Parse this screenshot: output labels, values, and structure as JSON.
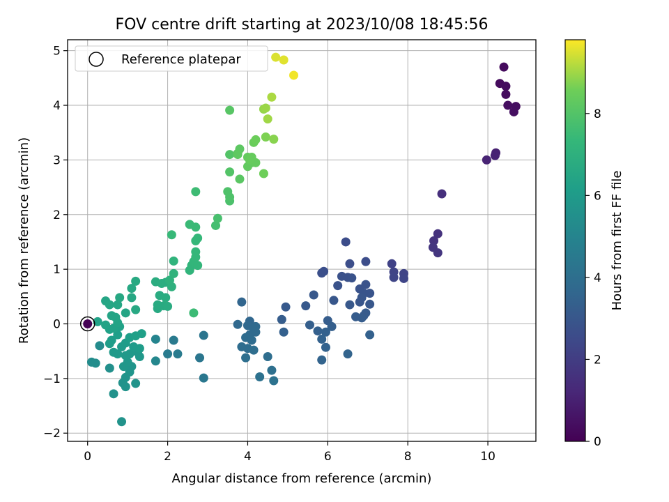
{
  "chart_data": {
    "type": "scatter",
    "title": "FOV centre drift starting at 2023/10/08 18:45:56",
    "xlabel": "Angular distance from reference (arcmin)",
    "ylabel": "Rotation from reference (arcmin)",
    "xlim": [
      -0.5,
      11.2
    ],
    "ylim": [
      -2.15,
      5.2
    ],
    "xticks": [
      0,
      2,
      4,
      6,
      8,
      10
    ],
    "yticks": [
      -2,
      -1,
      0,
      1,
      2,
      3,
      4,
      5
    ],
    "grid": true,
    "legend": {
      "placement": "upper-left",
      "entries": [
        "Reference platepar"
      ]
    },
    "reference_point": {
      "x": 0,
      "y": 0
    },
    "colorbar": {
      "label": "Hours from first FF file",
      "colormap": "viridis",
      "range": [
        0,
        9.8
      ],
      "ticks": [
        0,
        2,
        4,
        6,
        8
      ]
    },
    "points": [
      {
        "x": 10.4,
        "y": 4.7,
        "h": 0.3
      },
      {
        "x": 10.3,
        "y": 4.4,
        "h": 0.3
      },
      {
        "x": 10.45,
        "y": 4.35,
        "h": 0.35
      },
      {
        "x": 10.45,
        "y": 4.2,
        "h": 0.35
      },
      {
        "x": 10.5,
        "y": 4.0,
        "h": 0.4
      },
      {
        "x": 10.7,
        "y": 3.98,
        "h": 0.4
      },
      {
        "x": 10.65,
        "y": 3.88,
        "h": 0.45
      },
      {
        "x": 10.2,
        "y": 3.13,
        "h": 1.0
      },
      {
        "x": 10.18,
        "y": 3.08,
        "h": 1.05
      },
      {
        "x": 9.97,
        "y": 3.0,
        "h": 1.1
      },
      {
        "x": 8.85,
        "y": 2.38,
        "h": 1.5
      },
      {
        "x": 8.75,
        "y": 1.65,
        "h": 1.6
      },
      {
        "x": 8.65,
        "y": 1.52,
        "h": 1.65
      },
      {
        "x": 8.63,
        "y": 1.4,
        "h": 1.7
      },
      {
        "x": 8.75,
        "y": 1.3,
        "h": 1.75
      },
      {
        "x": 7.6,
        "y": 1.1,
        "h": 2.2
      },
      {
        "x": 7.65,
        "y": 0.95,
        "h": 2.25
      },
      {
        "x": 7.9,
        "y": 0.92,
        "h": 2.25
      },
      {
        "x": 7.65,
        "y": 0.85,
        "h": 2.3
      },
      {
        "x": 7.9,
        "y": 0.83,
        "h": 2.3
      },
      {
        "x": 6.45,
        "y": 1.5,
        "h": 2.6
      },
      {
        "x": 6.95,
        "y": 1.14,
        "h": 2.6
      },
      {
        "x": 6.55,
        "y": 1.1,
        "h": 2.65
      },
      {
        "x": 5.9,
        "y": 0.96,
        "h": 2.7
      },
      {
        "x": 5.85,
        "y": 0.93,
        "h": 2.7
      },
      {
        "x": 6.35,
        "y": 0.87,
        "h": 2.75
      },
      {
        "x": 6.5,
        "y": 0.85,
        "h": 2.75
      },
      {
        "x": 6.6,
        "y": 0.84,
        "h": 2.8
      },
      {
        "x": 6.25,
        "y": 0.7,
        "h": 2.8
      },
      {
        "x": 6.95,
        "y": 0.72,
        "h": 2.85
      },
      {
        "x": 6.8,
        "y": 0.64,
        "h": 2.85
      },
      {
        "x": 6.9,
        "y": 0.56,
        "h": 2.9
      },
      {
        "x": 7.05,
        "y": 0.56,
        "h": 2.9
      },
      {
        "x": 6.85,
        "y": 0.48,
        "h": 2.95
      },
      {
        "x": 6.8,
        "y": 0.4,
        "h": 2.95
      },
      {
        "x": 7.05,
        "y": 0.36,
        "h": 3.0
      },
      {
        "x": 6.15,
        "y": 0.43,
        "h": 3.0
      },
      {
        "x": 6.55,
        "y": 0.35,
        "h": 3.05
      },
      {
        "x": 5.65,
        "y": 0.53,
        "h": 3.05
      },
      {
        "x": 5.45,
        "y": 0.33,
        "h": 3.1
      },
      {
        "x": 4.95,
        "y": 0.31,
        "h": 3.1
      },
      {
        "x": 6.95,
        "y": 0.2,
        "h": 3.15
      },
      {
        "x": 6.9,
        "y": 0.15,
        "h": 3.15
      },
      {
        "x": 6.7,
        "y": 0.13,
        "h": 3.2
      },
      {
        "x": 6.85,
        "y": 0.11,
        "h": 3.2
      },
      {
        "x": 6.0,
        "y": 0.06,
        "h": 3.25
      },
      {
        "x": 4.85,
        "y": 0.08,
        "h": 3.25
      },
      {
        "x": 5.55,
        "y": -0.02,
        "h": 3.3
      },
      {
        "x": 6.1,
        "y": -0.05,
        "h": 3.3
      },
      {
        "x": 5.75,
        "y": -0.13,
        "h": 3.35
      },
      {
        "x": 4.9,
        "y": -0.15,
        "h": 3.35
      },
      {
        "x": 5.95,
        "y": -0.15,
        "h": 3.4
      },
      {
        "x": 7.05,
        "y": -0.2,
        "h": 3.4
      },
      {
        "x": 5.85,
        "y": -0.28,
        "h": 3.45
      },
      {
        "x": 5.95,
        "y": -0.43,
        "h": 3.45
      },
      {
        "x": 6.5,
        "y": -0.55,
        "h": 3.5
      },
      {
        "x": 5.85,
        "y": -0.66,
        "h": 3.5
      },
      {
        "x": 3.85,
        "y": 0.4,
        "h": 3.6
      },
      {
        "x": 4.05,
        "y": 0.05,
        "h": 3.65
      },
      {
        "x": 3.75,
        "y": -0.01,
        "h": 3.7
      },
      {
        "x": 4.0,
        "y": -0.03,
        "h": 3.7
      },
      {
        "x": 4.2,
        "y": -0.05,
        "h": 3.75
      },
      {
        "x": 4.15,
        "y": -0.1,
        "h": 3.75
      },
      {
        "x": 4.2,
        "y": -0.15,
        "h": 3.8
      },
      {
        "x": 4.05,
        "y": -0.2,
        "h": 3.8
      },
      {
        "x": 3.95,
        "y": -0.25,
        "h": 3.85
      },
      {
        "x": 4.1,
        "y": -0.3,
        "h": 3.85
      },
      {
        "x": 3.85,
        "y": -0.42,
        "h": 3.9
      },
      {
        "x": 4.0,
        "y": -0.45,
        "h": 3.9
      },
      {
        "x": 4.15,
        "y": -0.48,
        "h": 3.95
      },
      {
        "x": 4.5,
        "y": -0.6,
        "h": 3.95
      },
      {
        "x": 3.95,
        "y": -0.62,
        "h": 4.0
      },
      {
        "x": 4.6,
        "y": -0.85,
        "h": 4.05
      },
      {
        "x": 4.3,
        "y": -0.97,
        "h": 4.1
      },
      {
        "x": 4.65,
        "y": -1.04,
        "h": 4.15
      },
      {
        "x": 2.9,
        "y": -0.21,
        "h": 4.3
      },
      {
        "x": 2.8,
        "y": -0.62,
        "h": 4.35
      },
      {
        "x": 2.9,
        "y": -0.99,
        "h": 4.4
      },
      {
        "x": 2.15,
        "y": -0.3,
        "h": 4.5
      },
      {
        "x": 2.0,
        "y": -0.55,
        "h": 4.55
      },
      {
        "x": 2.25,
        "y": -0.55,
        "h": 4.55
      },
      {
        "x": 1.7,
        "y": -0.28,
        "h": 5.0
      },
      {
        "x": 1.7,
        "y": -0.68,
        "h": 5.1
      },
      {
        "x": 0.3,
        "y": -0.4,
        "h": 5.3
      },
      {
        "x": 0.1,
        "y": -0.7,
        "h": 5.35
      },
      {
        "x": 0.2,
        "y": -0.72,
        "h": 5.4
      },
      {
        "x": 0.55,
        "y": -0.81,
        "h": 5.5
      },
      {
        "x": 0.65,
        "y": -1.28,
        "h": 5.6
      },
      {
        "x": 0.88,
        "y": -1.08,
        "h": 5.6
      },
      {
        "x": 0.85,
        "y": -1.79,
        "h": 5.65
      },
      {
        "x": 0.95,
        "y": -1.15,
        "h": 5.65
      },
      {
        "x": 1.2,
        "y": -1.09,
        "h": 5.7
      },
      {
        "x": 0.95,
        "y": -0.98,
        "h": 5.7
      },
      {
        "x": 1.05,
        "y": -0.88,
        "h": 5.75
      },
      {
        "x": 1.1,
        "y": -0.78,
        "h": 5.75
      },
      {
        "x": 0.9,
        "y": -0.78,
        "h": 5.8
      },
      {
        "x": 1.0,
        "y": -0.7,
        "h": 5.8
      },
      {
        "x": 1.25,
        "y": -0.52,
        "h": 5.85
      },
      {
        "x": 1.3,
        "y": -0.6,
        "h": 5.85
      },
      {
        "x": 1.05,
        "y": -0.55,
        "h": 5.9
      },
      {
        "x": 0.95,
        "y": -0.58,
        "h": 5.9
      },
      {
        "x": 0.75,
        "y": -0.55,
        "h": 5.95
      },
      {
        "x": 0.65,
        "y": -0.52,
        "h": 5.95
      },
      {
        "x": 0.85,
        "y": -0.42,
        "h": 6.0
      },
      {
        "x": 1.15,
        "y": -0.42,
        "h": 6.0
      },
      {
        "x": 1.3,
        "y": -0.45,
        "h": 6.05
      },
      {
        "x": 0.95,
        "y": -0.35,
        "h": 6.05
      },
      {
        "x": 0.6,
        "y": -0.3,
        "h": 6.1
      },
      {
        "x": 0.55,
        "y": -0.36,
        "h": 6.1
      },
      {
        "x": 0.75,
        "y": -0.2,
        "h": 6.15
      },
      {
        "x": 1.05,
        "y": -0.25,
        "h": 6.15
      },
      {
        "x": 1.2,
        "y": -0.22,
        "h": 6.2
      },
      {
        "x": 1.35,
        "y": -0.18,
        "h": 6.2
      },
      {
        "x": 0.55,
        "y": -0.1,
        "h": 6.25
      },
      {
        "x": 0.8,
        "y": -0.05,
        "h": 6.25
      },
      {
        "x": 0.65,
        "y": -0.08,
        "h": 6.3
      },
      {
        "x": 0.25,
        "y": 0.04,
        "h": 6.3
      },
      {
        "x": 0.45,
        "y": -0.02,
        "h": 6.35
      },
      {
        "x": 0.75,
        "y": 0.02,
        "h": 6.35
      },
      {
        "x": 0.6,
        "y": 0.15,
        "h": 6.4
      },
      {
        "x": 0.7,
        "y": 0.12,
        "h": 6.4
      },
      {
        "x": 0.95,
        "y": 0.2,
        "h": 6.45
      },
      {
        "x": 0.45,
        "y": 0.42,
        "h": 6.45
      },
      {
        "x": 0.55,
        "y": 0.35,
        "h": 6.5
      },
      {
        "x": 0.75,
        "y": 0.35,
        "h": 6.5
      },
      {
        "x": 0.8,
        "y": 0.48,
        "h": 6.55
      },
      {
        "x": 1.1,
        "y": 0.48,
        "h": 6.55
      },
      {
        "x": 1.2,
        "y": 0.26,
        "h": 6.6
      },
      {
        "x": 1.1,
        "y": 0.65,
        "h": 6.6
      },
      {
        "x": 1.2,
        "y": 0.78,
        "h": 6.65
      },
      {
        "x": 1.75,
        "y": 0.28,
        "h": 6.65
      },
      {
        "x": 1.75,
        "y": 0.35,
        "h": 6.7
      },
      {
        "x": 1.9,
        "y": 0.33,
        "h": 6.7
      },
      {
        "x": 2.0,
        "y": 0.32,
        "h": 6.75
      },
      {
        "x": 1.8,
        "y": 0.52,
        "h": 6.75
      },
      {
        "x": 1.95,
        "y": 0.48,
        "h": 6.8
      },
      {
        "x": 1.7,
        "y": 0.77,
        "h": 6.8
      },
      {
        "x": 1.85,
        "y": 0.74,
        "h": 6.85
      },
      {
        "x": 1.95,
        "y": 0.76,
        "h": 6.85
      },
      {
        "x": 2.1,
        "y": 0.68,
        "h": 7.0
      },
      {
        "x": 2.05,
        "y": 0.8,
        "h": 7.05
      },
      {
        "x": 2.15,
        "y": 0.92,
        "h": 7.1
      },
      {
        "x": 2.15,
        "y": 1.15,
        "h": 7.15
      },
      {
        "x": 2.55,
        "y": 0.98,
        "h": 7.2
      },
      {
        "x": 2.6,
        "y": 1.07,
        "h": 7.2
      },
      {
        "x": 2.65,
        "y": 1.14,
        "h": 7.25
      },
      {
        "x": 2.75,
        "y": 1.07,
        "h": 7.25
      },
      {
        "x": 2.7,
        "y": 1.22,
        "h": 7.3
      },
      {
        "x": 2.7,
        "y": 1.32,
        "h": 7.3
      },
      {
        "x": 2.7,
        "y": 1.52,
        "h": 7.35
      },
      {
        "x": 2.75,
        "y": 1.57,
        "h": 7.35
      },
      {
        "x": 2.1,
        "y": 1.63,
        "h": 7.4
      },
      {
        "x": 2.55,
        "y": 1.82,
        "h": 7.45
      },
      {
        "x": 2.7,
        "y": 1.77,
        "h": 7.45
      },
      {
        "x": 2.65,
        "y": 0.2,
        "h": 7.5
      },
      {
        "x": 2.7,
        "y": 2.42,
        "h": 7.55
      },
      {
        "x": 3.2,
        "y": 1.8,
        "h": 7.7
      },
      {
        "x": 3.25,
        "y": 1.93,
        "h": 7.75
      },
      {
        "x": 3.55,
        "y": 2.25,
        "h": 7.85
      },
      {
        "x": 3.55,
        "y": 2.32,
        "h": 7.9
      },
      {
        "x": 3.5,
        "y": 2.42,
        "h": 7.9
      },
      {
        "x": 3.55,
        "y": 2.78,
        "h": 8.0
      },
      {
        "x": 3.55,
        "y": 3.1,
        "h": 8.0
      },
      {
        "x": 3.55,
        "y": 3.91,
        "h": 8.1
      },
      {
        "x": 3.8,
        "y": 2.65,
        "h": 8.15
      },
      {
        "x": 3.75,
        "y": 3.12,
        "h": 8.2
      },
      {
        "x": 3.8,
        "y": 3.2,
        "h": 8.2
      },
      {
        "x": 3.75,
        "y": 3.1,
        "h": 8.25
      },
      {
        "x": 4.0,
        "y": 2.88,
        "h": 8.3
      },
      {
        "x": 4.1,
        "y": 2.95,
        "h": 8.3
      },
      {
        "x": 4.2,
        "y": 2.95,
        "h": 8.35
      },
      {
        "x": 4.0,
        "y": 3.05,
        "h": 8.35
      },
      {
        "x": 4.05,
        "y": 3.0,
        "h": 8.4
      },
      {
        "x": 4.1,
        "y": 3.05,
        "h": 8.4
      },
      {
        "x": 4.15,
        "y": 3.32,
        "h": 8.45
      },
      {
        "x": 4.2,
        "y": 3.37,
        "h": 8.5
      },
      {
        "x": 4.4,
        "y": 2.75,
        "h": 8.55
      },
      {
        "x": 4.45,
        "y": 3.42,
        "h": 8.7
      },
      {
        "x": 4.65,
        "y": 3.38,
        "h": 8.8
      },
      {
        "x": 4.4,
        "y": 3.93,
        "h": 8.9
      },
      {
        "x": 4.45,
        "y": 3.95,
        "h": 8.95
      },
      {
        "x": 4.5,
        "y": 3.75,
        "h": 9.0
      },
      {
        "x": 4.6,
        "y": 4.15,
        "h": 9.1
      },
      {
        "x": 4.7,
        "y": 4.88,
        "h": 9.5
      },
      {
        "x": 4.9,
        "y": 4.83,
        "h": 9.55
      },
      {
        "x": 5.15,
        "y": 4.55,
        "h": 9.7
      }
    ]
  }
}
